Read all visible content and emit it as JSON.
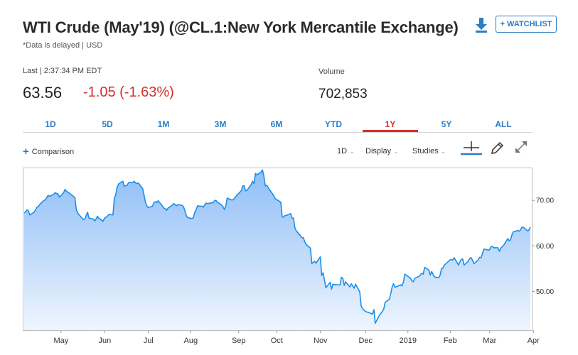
{
  "header": {
    "title": "WTI Crude (May'19) (@CL.1:New York Mercantile Exchange)",
    "subtitle": "*Data is delayed | USD",
    "watchlist_label": "+ WATCHLIST",
    "download_icon": "download-icon"
  },
  "quote": {
    "last_label": "Last | 2:37:34 PM EDT",
    "last_value": "63.56",
    "change": "-1.05 (-1.63%)",
    "change_color": "#d32f2f",
    "volume_label": "Volume",
    "volume_value": "702,853"
  },
  "tabs": [
    "1D",
    "5D",
    "1M",
    "3M",
    "6M",
    "YTD",
    "1Y",
    "5Y",
    "ALL"
  ],
  "active_tab": "1Y",
  "toolbar": {
    "comparison_label": "Comparison",
    "interval_label": "1D",
    "display_label": "Display",
    "studies_label": "Studies",
    "icons": [
      "crosshair-icon",
      "pencil-icon",
      "expand-icon"
    ]
  },
  "colors": {
    "accent": "#2e7cc4",
    "line": "#1a8fe8",
    "fill_top": "#8fbef7",
    "fill_bottom": "#eef5fe",
    "negative": "#d32f2f"
  },
  "chart_data": {
    "type": "area",
    "ylim": [
      41.5,
      77.2
    ],
    "yticks": [
      50,
      60,
      70
    ],
    "ytick_labels": [
      "50.00",
      "60.00",
      "70.00"
    ],
    "xtick_labels": [
      "May",
      "Jun",
      "Jul",
      "Aug",
      "Sep",
      "Oct",
      "Nov",
      "Dec",
      "2019",
      "Feb",
      "Mar",
      "Apr"
    ],
    "grid": false,
    "series": [
      {
        "x": [
          "2018-04-23",
          "2018-04-24",
          "2018-04-25",
          "2018-04-26",
          "2018-04-27",
          "2018-04-30",
          "2018-05-01",
          "2018-05-02",
          "2018-05-03",
          "2018-05-04",
          "2018-05-07",
          "2018-05-08",
          "2018-05-09",
          "2018-05-10",
          "2018-05-11",
          "2018-05-14",
          "2018-05-15",
          "2018-05-16",
          "2018-05-17",
          "2018-05-18",
          "2018-05-21",
          "2018-05-22",
          "2018-05-23",
          "2018-05-24",
          "2018-05-25",
          "2018-05-29",
          "2018-05-30",
          "2018-05-31",
          "2018-06-01",
          "2018-06-04",
          "2018-06-05",
          "2018-06-06",
          "2018-06-07",
          "2018-06-08",
          "2018-06-11",
          "2018-06-12",
          "2018-06-13",
          "2018-06-14",
          "2018-06-15",
          "2018-06-18",
          "2018-06-19",
          "2018-06-20",
          "2018-06-21",
          "2018-06-22",
          "2018-06-25",
          "2018-06-26",
          "2018-06-27",
          "2018-06-28",
          "2018-06-29",
          "2018-07-02",
          "2018-07-03",
          "2018-07-05",
          "2018-07-06",
          "2018-07-09",
          "2018-07-10",
          "2018-07-11",
          "2018-07-12",
          "2018-07-13",
          "2018-07-16",
          "2018-07-17",
          "2018-07-18",
          "2018-07-19",
          "2018-07-20",
          "2018-07-23",
          "2018-07-24",
          "2018-07-25",
          "2018-07-26",
          "2018-07-27",
          "2018-07-30",
          "2018-07-31",
          "2018-08-01",
          "2018-08-02",
          "2018-08-03",
          "2018-08-06",
          "2018-08-07",
          "2018-08-08",
          "2018-08-09",
          "2018-08-10",
          "2018-08-13",
          "2018-08-14",
          "2018-08-15",
          "2018-08-16",
          "2018-08-17",
          "2018-08-20",
          "2018-08-21",
          "2018-08-22",
          "2018-08-23",
          "2018-08-24",
          "2018-08-27",
          "2018-08-28",
          "2018-08-29",
          "2018-08-30",
          "2018-08-31",
          "2018-09-04",
          "2018-09-05",
          "2018-09-06",
          "2018-09-07",
          "2018-09-10",
          "2018-09-11",
          "2018-09-12",
          "2018-09-13",
          "2018-09-14",
          "2018-09-17",
          "2018-09-18",
          "2018-09-19",
          "2018-09-20",
          "2018-09-21",
          "2018-09-24",
          "2018-09-25",
          "2018-09-26",
          "2018-09-27",
          "2018-09-28",
          "2018-10-01",
          "2018-10-02",
          "2018-10-03",
          "2018-10-04",
          "2018-10-05",
          "2018-10-08",
          "2018-10-09",
          "2018-10-10",
          "2018-10-11",
          "2018-10-12",
          "2018-10-15",
          "2018-10-16",
          "2018-10-17",
          "2018-10-18",
          "2018-10-19",
          "2018-10-22",
          "2018-10-23",
          "2018-10-24",
          "2018-10-25",
          "2018-10-26",
          "2018-10-29",
          "2018-10-30",
          "2018-10-31",
          "2018-11-01",
          "2018-11-02",
          "2018-11-05",
          "2018-11-06",
          "2018-11-07",
          "2018-11-08",
          "2018-11-09",
          "2018-11-12",
          "2018-11-13",
          "2018-11-14",
          "2018-11-15",
          "2018-11-16",
          "2018-11-19",
          "2018-11-20",
          "2018-11-21",
          "2018-11-23",
          "2018-11-26",
          "2018-11-27",
          "2018-11-28",
          "2018-11-29",
          "2018-11-30",
          "2018-12-03",
          "2018-12-04",
          "2018-12-05",
          "2018-12-06",
          "2018-12-07",
          "2018-12-10",
          "2018-12-11",
          "2018-12-12",
          "2018-12-13",
          "2018-12-14",
          "2018-12-17",
          "2018-12-18",
          "2018-12-19",
          "2018-12-20",
          "2018-12-21",
          "2018-12-24",
          "2018-12-26",
          "2018-12-27",
          "2018-12-28",
          "2018-12-31",
          "2019-01-02",
          "2019-01-03",
          "2019-01-04",
          "2019-01-07",
          "2019-01-08",
          "2019-01-09",
          "2019-01-10",
          "2019-01-11",
          "2019-01-14",
          "2019-01-15",
          "2019-01-16",
          "2019-01-17",
          "2019-01-18",
          "2019-01-22",
          "2019-01-23",
          "2019-01-24",
          "2019-01-25",
          "2019-01-28",
          "2019-01-29",
          "2019-01-30",
          "2019-01-31",
          "2019-02-01",
          "2019-02-04",
          "2019-02-05",
          "2019-02-06",
          "2019-02-07",
          "2019-02-08",
          "2019-02-11",
          "2019-02-12",
          "2019-02-13",
          "2019-02-14",
          "2019-02-15",
          "2019-02-19",
          "2019-02-20",
          "2019-02-21",
          "2019-02-22",
          "2019-02-25",
          "2019-02-26",
          "2019-02-27",
          "2019-02-28",
          "2019-03-01",
          "2019-03-04",
          "2019-03-05",
          "2019-03-06",
          "2019-03-07",
          "2019-03-08",
          "2019-03-11",
          "2019-03-12",
          "2019-03-13",
          "2019-03-14",
          "2019-03-15",
          "2019-03-18",
          "2019-03-19",
          "2019-03-20",
          "2019-03-21",
          "2019-03-22",
          "2019-03-25",
          "2019-03-26",
          "2019-03-27",
          "2019-03-28",
          "2019-03-29",
          "2019-04-01",
          "2019-04-02",
          "2019-04-03",
          "2019-04-04",
          "2019-04-05",
          "2019-04-08",
          "2019-04-09",
          "2019-04-10",
          "2019-04-11",
          "2019-04-12",
          "2019-04-15",
          "2019-04-16",
          "2019-04-17"
        ],
        "y": [
          67.2,
          67.5,
          67.9,
          67.7,
          66.8,
          67.4,
          67.9,
          68.5,
          68.6,
          69.1,
          70.0,
          70.1,
          70.6,
          71.1,
          70.9,
          71.3,
          71.7,
          71.5,
          71.4,
          70.7,
          71.7,
          72.4,
          72.0,
          71.8,
          71.6,
          70.6,
          67.9,
          67.2,
          66.8,
          65.8,
          65.9,
          66.7,
          67.4,
          66.1,
          65.9,
          65.5,
          65.9,
          66.5,
          66.1,
          65.4,
          66.1,
          66.3,
          66.5,
          66.9,
          66.8,
          70.5,
          71.3,
          73.0,
          73.6,
          74.2,
          73.1,
          73.3,
          73.9,
          73.9,
          74.2,
          73.8,
          73.7,
          73.8,
          72.6,
          71.1,
          69.6,
          68.8,
          68.4,
          68.7,
          69.5,
          69.7,
          69.5,
          69.9,
          68.8,
          68.3,
          68.2,
          67.8,
          68.3,
          68.9,
          69.3,
          69.1,
          68.8,
          69.1,
          68.9,
          68.6,
          67.7,
          66.6,
          66.2,
          66.0,
          66.2,
          67.4,
          68.0,
          68.8,
          68.7,
          68.5,
          69.0,
          69.4,
          69.3,
          69.5,
          69.9,
          70.0,
          69.6,
          69.0,
          68.6,
          68.0,
          68.8,
          70.5,
          70.1,
          70.1,
          70.4,
          70.8,
          71.2,
          72.1,
          73.2,
          73.2,
          72.1,
          72.2,
          73.5,
          74.2,
          73.7,
          75.9,
          75.6,
          76.2,
          76.7,
          75.3,
          73.2,
          73.3,
          71.9,
          71.5,
          71.0,
          70.4,
          70.2,
          69.6,
          66.4,
          66.3,
          66.7,
          66.7,
          67.1,
          66.1,
          66.1,
          64.0,
          63.3,
          62.2,
          61.8,
          61.8,
          60.9,
          60.3,
          59.5,
          56.1,
          56.4,
          56.6,
          56.2,
          57.6,
          53.5,
          54.1,
          50.8,
          52.0,
          50.5,
          51.6,
          51.5,
          51.5,
          51.4,
          53.1,
          52.9,
          51.3,
          52.1,
          51.0,
          51.7,
          51.2,
          50.7,
          51.6,
          49.9,
          46.8,
          46.2,
          45.9,
          45.6,
          45.3,
          45.0,
          46.0,
          43.0,
          44.8,
          45.6,
          46.1,
          47.6,
          48.3,
          49.6,
          51.0,
          51.7,
          50.9,
          51.3,
          51.5,
          51.2,
          52.1,
          53.8,
          52.9,
          52.3,
          52.1,
          52.9,
          53.3,
          53.6,
          54.0,
          53.8,
          55.3,
          54.7,
          53.6,
          54.4,
          53.7,
          53.2,
          53.0,
          53.6,
          55.1,
          55.1,
          55.8,
          56.9,
          57.0,
          56.9,
          57.4,
          55.8,
          56.5,
          57.0,
          57.1,
          55.8,
          56.6,
          57.3,
          57.4,
          56.8,
          56.1,
          56.9,
          57.5,
          57.4,
          58.3,
          59.3,
          59.1,
          59.1,
          59.8,
          59.9,
          59.6,
          59.6,
          58.8,
          59.5,
          59.8,
          60.1,
          61.6,
          61.1,
          61.4,
          62.5,
          63.1,
          63.4,
          63.2,
          63.5,
          64.1,
          64.1,
          63.3,
          63.5,
          64.1
        ]
      }
    ]
  }
}
